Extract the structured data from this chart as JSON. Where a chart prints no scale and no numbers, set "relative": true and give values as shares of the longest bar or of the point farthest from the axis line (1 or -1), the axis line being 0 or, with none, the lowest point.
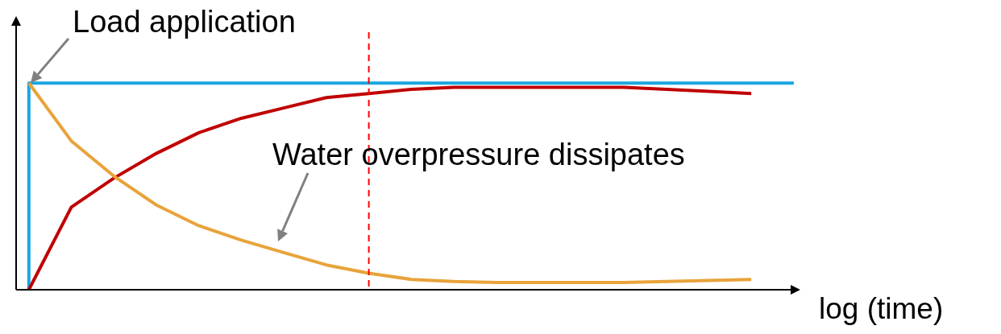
{
  "chart_data": {
    "type": "line",
    "relative": true,
    "xlabel": "log (time)",
    "tick_labels": false,
    "marker": "none",
    "categories": [
      null,
      null,
      null,
      null,
      null,
      null,
      null,
      null,
      null,
      null,
      null,
      null,
      null,
      null,
      null,
      null,
      null,
      null,
      null
    ],
    "series": [
      {
        "type": "step",
        "color": "#1aa7e0",
        "line_style": "solid",
        "values": [
          0,
          1,
          1,
          1,
          1,
          1,
          1,
          1,
          1,
          1,
          1,
          1,
          1,
          1,
          1,
          1,
          1,
          1,
          1
        ]
      },
      {
        "color": "#c00000",
        "line_style": "solid",
        "values": [
          0,
          0.4,
          0.54,
          0.66,
          0.76,
          0.83,
          0.88,
          0.93,
          0.95,
          0.97,
          0.98,
          0.98,
          0.98,
          0.98,
          0.98,
          0.97,
          0.96,
          0.95,
          null
        ]
      },
      {
        "color": "#e8a33a",
        "line_style": "solid",
        "values": [
          1,
          0.72,
          0.55,
          0.41,
          0.31,
          0.24,
          0.18,
          0.12,
          0.08,
          0.05,
          0.04,
          0.035,
          0.035,
          0.035,
          0.035,
          0.04,
          0.045,
          0.05,
          null
        ]
      }
    ],
    "annotations": [
      "Load application",
      "Water overpressure dissipates"
    ]
  }
}
